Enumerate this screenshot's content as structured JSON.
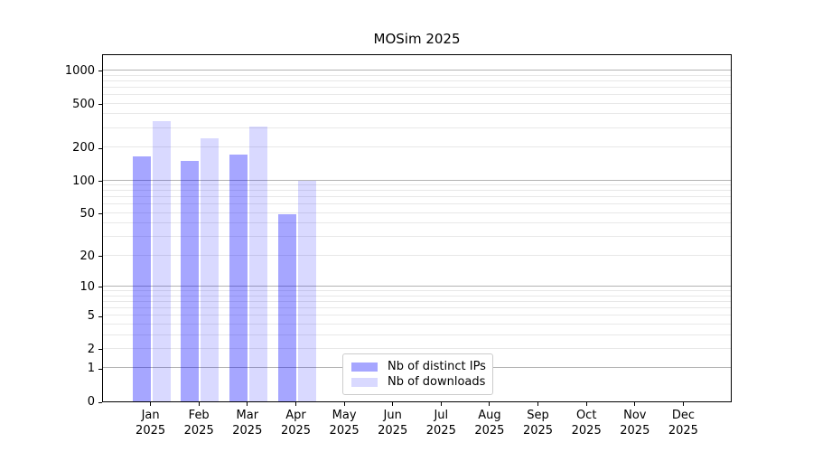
{
  "figure": {
    "background": "#ffffff"
  },
  "colors": {
    "spine": "#000000",
    "grid_major": "#b3b3b3",
    "grid_minor": "#e8e8e8",
    "text": "#000000",
    "legend_border": "#cccccc",
    "series_dark": "rgba(0,0,255,0.35)",
    "series_light": "rgba(0,0,255,0.15)"
  },
  "chart_data": {
    "type": "bar",
    "title": "MOSim 2025",
    "categories": [
      "Jan",
      "Feb",
      "Mar",
      "Apr",
      "May",
      "Jun",
      "Jul",
      "Aug",
      "Sep",
      "Oct",
      "Nov",
      "Dec"
    ],
    "category_year": "2025",
    "series": [
      {
        "name": "Nb of distinct IPs",
        "color": "rgba(0,0,255,0.35)",
        "values": [
          165,
          150,
          172,
          49,
          null,
          null,
          null,
          null,
          null,
          null,
          null,
          null
        ]
      },
      {
        "name": "Nb of downloads",
        "color": "rgba(0,0,255,0.15)",
        "values": [
          349,
          240,
          310,
          100,
          null,
          null,
          null,
          null,
          null,
          null,
          null,
          null
        ]
      }
    ],
    "y_axis": {
      "scale": "log1p",
      "min": 0,
      "max": 1430,
      "ticks": [
        0,
        1,
        2,
        5,
        10,
        20,
        50,
        100,
        200,
        500,
        1000
      ],
      "gridlines_major": [
        1,
        10,
        100,
        1000
      ],
      "gridlines_minor": [
        2,
        3,
        4,
        5,
        6,
        7,
        8,
        9,
        20,
        30,
        40,
        50,
        60,
        70,
        80,
        90,
        200,
        300,
        400,
        500,
        600,
        700,
        800,
        900
      ]
    },
    "grid": true,
    "legend_position": "inside-bottom-center"
  }
}
